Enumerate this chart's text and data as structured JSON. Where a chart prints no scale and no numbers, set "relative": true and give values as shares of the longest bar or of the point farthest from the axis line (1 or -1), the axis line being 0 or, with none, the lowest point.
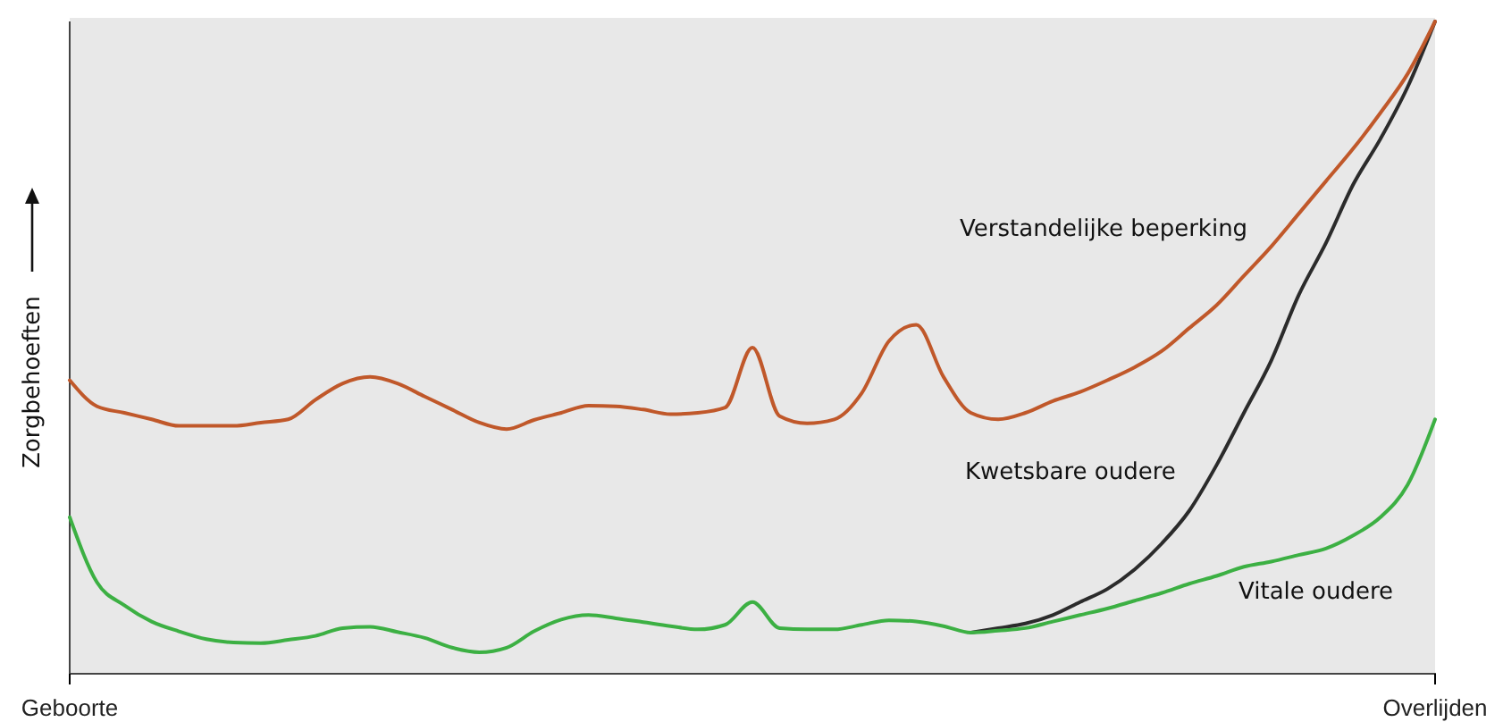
{
  "chart_data": {
    "type": "line",
    "relative": true,
    "ylabel": "Zorgbehoeften",
    "legend": false,
    "marker": "none",
    "line_style": "solid",
    "categories": [
      "Geboorte",
      null,
      null,
      null,
      null,
      null,
      null,
      null,
      null,
      null,
      null,
      null,
      null,
      null,
      null,
      null,
      null,
      null,
      null,
      null,
      null,
      null,
      null,
      null,
      null,
      null,
      null,
      null,
      null,
      null,
      null,
      null,
      null,
      null,
      null,
      null,
      null,
      null,
      null,
      null,
      null,
      null,
      null,
      null,
      null,
      null,
      null,
      null,
      null,
      null,
      "Overlijden"
    ],
    "series": [
      {
        "name": "Verstandelijke beperking",
        "color": "#c0582a",
        "values": [
          0.45,
          0.41,
          0.4,
          0.39,
          0.38,
          0.38,
          0.38,
          0.385,
          0.39,
          0.42,
          0.445,
          0.455,
          0.445,
          0.425,
          0.405,
          0.385,
          0.375,
          0.389,
          0.4,
          0.411,
          0.41,
          0.405,
          0.398,
          0.4,
          0.408,
          0.5,
          0.395,
          0.384,
          0.39,
          0.43,
          0.51,
          0.535,
          0.455,
          0.4,
          0.39,
          0.4,
          0.418,
          0.432,
          0.45,
          0.47,
          0.495,
          0.53,
          0.565,
          0.61,
          0.655,
          0.705,
          0.755,
          0.805,
          0.86,
          0.92,
          1
        ]
      },
      {
        "name": "Kwetsbare oudere",
        "color": "#2b2b2b",
        "values": [
          null,
          null,
          null,
          null,
          null,
          null,
          null,
          null,
          null,
          null,
          null,
          null,
          null,
          null,
          null,
          null,
          null,
          null,
          null,
          null,
          null,
          null,
          null,
          null,
          null,
          null,
          null,
          null,
          null,
          null,
          null,
          null,
          null,
          0.063,
          0.07,
          0.077,
          0.09,
          0.11,
          0.13,
          0.16,
          0.2,
          0.25,
          0.32,
          0.4,
          0.48,
          0.58,
          0.66,
          0.75,
          0.82,
          0.9,
          1
        ]
      },
      {
        "name": "Vitale oudere",
        "color": "#3cb043",
        "values": [
          0.24,
          0.14,
          0.105,
          0.08,
          0.065,
          0.053,
          0.048,
          0.047,
          0.052,
          0.058,
          0.07,
          0.072,
          0.064,
          0.055,
          0.04,
          0.033,
          0.04,
          0.065,
          0.083,
          0.09,
          0.085,
          0.079,
          0.073,
          0.068,
          0.075,
          0.11,
          0.07,
          0.068,
          0.068,
          0.075,
          0.082,
          0.08,
          0.073,
          0.063,
          0.066,
          0.07,
          0.08,
          0.09,
          0.1,
          0.112,
          0.124,
          0.138,
          0.15,
          0.164,
          0.172,
          0.182,
          0.192,
          0.212,
          0.24,
          0.29,
          0.39
        ]
      }
    ]
  }
}
